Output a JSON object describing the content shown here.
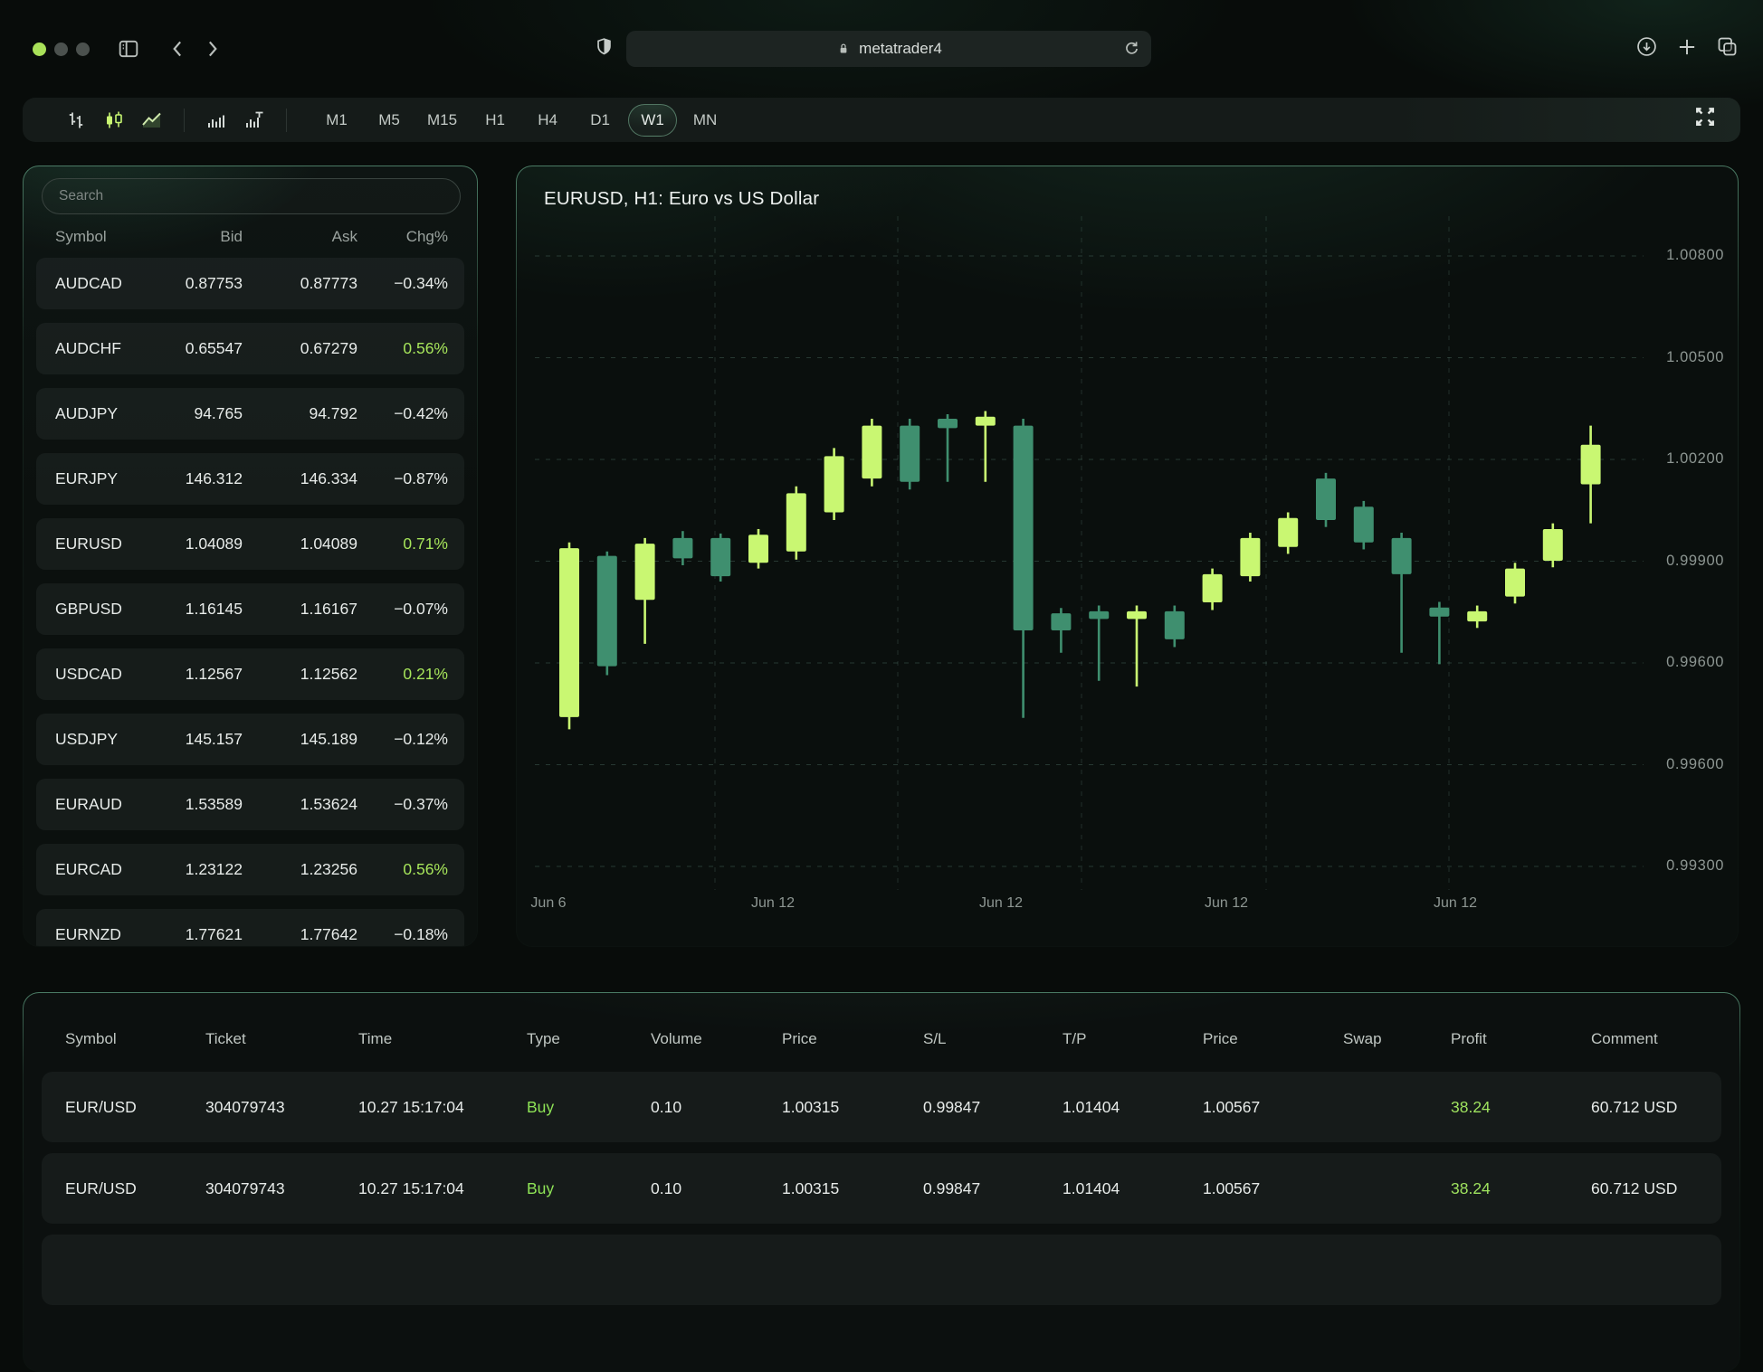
{
  "colors": {
    "accent_lime": "#c9f772",
    "bear_teal": "#3f8f6f",
    "buy_green": "#8ee356",
    "chg_green": "#a6e45a",
    "grid": "rgba(125,175,160,0.26)",
    "axis_text": "#8d9692"
  },
  "icons": {
    "traffic_lights": "dots",
    "sidebar": "panel-outline",
    "back": "chevron-left",
    "forward": "chevron-right",
    "shield": "shield",
    "lock": "padlock",
    "reload": "circular-arrow",
    "download": "circle-down-arrow",
    "new_tab": "plus",
    "tabs": "overlapping-squares",
    "chart_bars": "ohlc-bars",
    "chart_candles": "candlesticks",
    "chart_line": "line-area",
    "volume": "histogram",
    "volume_t": "histogram-T",
    "fullscreen": "four-arrows-out"
  },
  "browser": {
    "url_host": "metatrader4"
  },
  "toolbar": {
    "timeframes": [
      {
        "label": "M1",
        "active": false
      },
      {
        "label": "M5",
        "active": false
      },
      {
        "label": "M15",
        "active": false
      },
      {
        "label": "H1",
        "active": false
      },
      {
        "label": "H4",
        "active": false
      },
      {
        "label": "D1",
        "active": false
      },
      {
        "label": "W1",
        "active": true
      },
      {
        "label": "MN",
        "active": false
      }
    ]
  },
  "watchlist": {
    "search_placeholder": "Search",
    "columns": [
      "Symbol",
      "Bid",
      "Ask",
      "Chg%"
    ],
    "rows": [
      {
        "symbol": "AUDCAD",
        "bid": "0.87753",
        "ask": "0.87773",
        "chg": "−0.34%",
        "up": false
      },
      {
        "symbol": "AUDCHF",
        "bid": "0.65547",
        "ask": "0.67279",
        "chg": "0.56%",
        "up": true
      },
      {
        "symbol": "AUDJPY",
        "bid": "94.765",
        "ask": "94.792",
        "chg": "−0.42%",
        "up": false
      },
      {
        "symbol": "EURJPY",
        "bid": "146.312",
        "ask": "146.334",
        "chg": "−0.87%",
        "up": false
      },
      {
        "symbol": "EURUSD",
        "bid": "1.04089",
        "ask": "1.04089",
        "chg": "0.71%",
        "up": true
      },
      {
        "symbol": "GBPUSD",
        "bid": "1.16145",
        "ask": "1.16167",
        "chg": "−0.07%",
        "up": false
      },
      {
        "symbol": "USDCAD",
        "bid": "1.12567",
        "ask": "1.12562",
        "chg": "0.21%",
        "up": true
      },
      {
        "symbol": "USDJPY",
        "bid": "145.157",
        "ask": "145.189",
        "chg": "−0.12%",
        "up": false
      },
      {
        "symbol": "EURAUD",
        "bid": "1.53589",
        "ask": "1.53624",
        "chg": "−0.37%",
        "up": false
      },
      {
        "symbol": "EURCAD",
        "bid": "1.23122",
        "ask": "1.23256",
        "chg": "0.56%",
        "up": true
      },
      {
        "symbol": "EURNZD",
        "bid": "1.77621",
        "ask": "1.77642",
        "chg": "−0.18%",
        "up": false
      }
    ]
  },
  "chart": {
    "title": "EURUSD, H1: Euro vs US Dollar",
    "price_labels": [
      "1.00800",
      "1.00500",
      "1.00200",
      "0.99900",
      "0.99600",
      "0.99600",
      "0.99300"
    ],
    "date_labels": [
      "Jun 6",
      "Jun 12",
      "Jun 12",
      "Jun 12",
      "Jun 12"
    ]
  },
  "chart_data": {
    "type": "candlestick",
    "symbol": "EURUSD",
    "timeframe_selected": "W1",
    "y_axis_labels": [
      "1.00800",
      "1.00500",
      "1.00200",
      "0.99900",
      "0.99600",
      "0.99600",
      "0.99300"
    ],
    "x_axis_labels": [
      "Jun 6",
      "Jun 12",
      "Jun 12",
      "Jun 12",
      "Jun 12"
    ],
    "grid": "dashed",
    "ylim": [
      0.993,
      1.008
    ],
    "ohlc": [
      {
        "o": 0.99667,
        "h": 1.00096,
        "l": 0.99637,
        "c": 1.00082
      },
      {
        "o": 1.00063,
        "h": 1.00074,
        "l": 0.9977,
        "c": 0.99792
      },
      {
        "o": 0.99955,
        "h": 1.00107,
        "l": 0.99847,
        "c": 1.00093
      },
      {
        "o": 1.00107,
        "h": 1.00124,
        "l": 1.0004,
        "c": 1.00057
      },
      {
        "o": 1.00107,
        "h": 1.00118,
        "l": 1.0,
        "c": 1.00013
      },
      {
        "o": 1.00046,
        "h": 1.00129,
        "l": 1.00032,
        "c": 1.00115
      },
      {
        "o": 1.00074,
        "h": 1.00234,
        "l": 1.00054,
        "c": 1.00217
      },
      {
        "o": 1.0017,
        "h": 1.00328,
        "l": 1.00151,
        "c": 1.00308
      },
      {
        "o": 1.00253,
        "h": 1.004,
        "l": 1.00234,
        "c": 1.00383
      },
      {
        "o": 1.00383,
        "h": 1.004,
        "l": 1.00226,
        "c": 1.00245
      },
      {
        "o": 1.004,
        "h": 1.00411,
        "l": 1.00245,
        "c": 1.00377
      },
      {
        "o": 1.00383,
        "h": 1.00419,
        "l": 1.00245,
        "c": 1.00405
      },
      {
        "o": 1.00383,
        "h": 1.004,
        "l": 0.99665,
        "c": 0.9988
      },
      {
        "o": 0.99922,
        "h": 0.99935,
        "l": 0.99825,
        "c": 0.9988
      },
      {
        "o": 0.99927,
        "h": 0.99941,
        "l": 0.99756,
        "c": 0.99908
      },
      {
        "o": 0.99908,
        "h": 0.99941,
        "l": 0.99742,
        "c": 0.99927
      },
      {
        "o": 0.99927,
        "h": 0.99941,
        "l": 0.99839,
        "c": 0.99858
      },
      {
        "o": 0.99949,
        "h": 1.00032,
        "l": 0.9993,
        "c": 1.00018
      },
      {
        "o": 1.00013,
        "h": 1.0012,
        "l": 1.0,
        "c": 1.00107
      },
      {
        "o": 1.00085,
        "h": 1.0017,
        "l": 1.00068,
        "c": 1.00156
      },
      {
        "o": 1.00253,
        "h": 1.00267,
        "l": 1.00134,
        "c": 1.00151
      },
      {
        "o": 1.00184,
        "h": 1.00198,
        "l": 1.00079,
        "c": 1.00096
      },
      {
        "o": 1.00107,
        "h": 1.0012,
        "l": 0.99825,
        "c": 1.00018
      },
      {
        "o": 0.99936,
        "h": 0.9995,
        "l": 0.99797,
        "c": 0.99914
      },
      {
        "o": 0.99902,
        "h": 0.99941,
        "l": 0.99886,
        "c": 0.99927
      },
      {
        "o": 0.99963,
        "h": 1.00046,
        "l": 0.99946,
        "c": 1.00032
      },
      {
        "o": 1.00051,
        "h": 1.00143,
        "l": 1.00035,
        "c": 1.00129
      },
      {
        "o": 1.00239,
        "h": 1.00383,
        "l": 1.00143,
        "c": 1.00336
      }
    ]
  },
  "orders": {
    "columns": [
      "Symbol",
      "Ticket",
      "Time",
      "Type",
      "Volume",
      "Price",
      "S/L",
      "T/P",
      "Price",
      "Swap",
      "Profit",
      "Comment"
    ],
    "rows": [
      {
        "symbol": "EUR/USD",
        "ticket": "304079743",
        "time": "10.27 15:17:04",
        "type": "Buy",
        "volume": "0.10",
        "price": "1.00315",
        "sl": "0.99847",
        "tp": "1.01404",
        "price2": "1.00567",
        "swap": "",
        "profit": "38.24",
        "comment": "60.712 USD"
      },
      {
        "symbol": "EUR/USD",
        "ticket": "304079743",
        "time": "10.27 15:17:04",
        "type": "Buy",
        "volume": "0.10",
        "price": "1.00315",
        "sl": "0.99847",
        "tp": "1.01404",
        "price2": "1.00567",
        "swap": "",
        "profit": "38.24",
        "comment": "60.712 USD"
      }
    ]
  }
}
